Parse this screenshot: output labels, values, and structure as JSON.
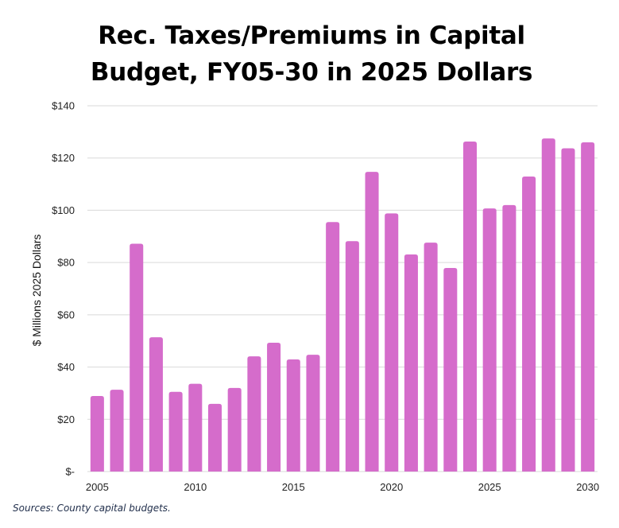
{
  "chart_data": {
    "type": "bar",
    "title_lines": [
      "Rec. Taxes/Premiums in Capital",
      "Budget, FY05-30 in 2025 Dollars"
    ],
    "title": "Rec. Taxes/Premiums in Capital Budget, FY05-30 in 2025 Dollars",
    "xlabel": "",
    "ylabel": "$ Millions 2025 Dollars",
    "ylim": [
      0,
      140
    ],
    "yticks": [
      0,
      20,
      40,
      60,
      80,
      100,
      120,
      140
    ],
    "ytick_labels": [
      "$-",
      "$20",
      "$40",
      "$60",
      "$80",
      "$100",
      "$120",
      "$140"
    ],
    "xtick_labels": [
      "2005",
      "2010",
      "2015",
      "2020",
      "2025",
      "2030"
    ],
    "xtick_years": [
      2005,
      2010,
      2015,
      2020,
      2025,
      2030
    ],
    "grid": true,
    "legend": "none",
    "bar_color": "#d56ccb",
    "categories": [
      2005,
      2006,
      2007,
      2008,
      2009,
      2010,
      2011,
      2012,
      2013,
      2014,
      2015,
      2016,
      2017,
      2018,
      2019,
      2020,
      2021,
      2022,
      2023,
      2024,
      2025,
      2026,
      2027,
      2028,
      2029,
      2030
    ],
    "values": [
      28.9,
      31.3,
      87.2,
      51.4,
      30.5,
      33.6,
      25.9,
      32.0,
      44.1,
      49.3,
      42.9,
      44.7,
      95.5,
      88.2,
      114.7,
      98.8,
      83.1,
      87.6,
      77.9,
      126.3,
      100.7,
      102.0,
      112.9,
      127.5,
      123.7,
      126.0
    ]
  },
  "source_note": "Sources: County capital budgets."
}
